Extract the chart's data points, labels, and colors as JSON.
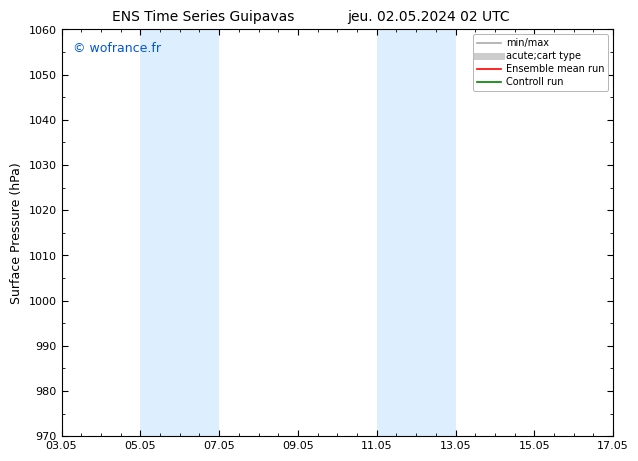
{
  "title_left": "ENS Time Series Guipavas",
  "title_right": "jeu. 02.05.2024 02 UTC",
  "ylabel": "Surface Pressure (hPa)",
  "ylim": [
    970,
    1060
  ],
  "yticks": [
    970,
    980,
    990,
    1000,
    1010,
    1020,
    1030,
    1040,
    1050,
    1060
  ],
  "xlim_start": 0,
  "xlim_end": 14,
  "xtick_labels": [
    "03.05",
    "05.05",
    "07.05",
    "09.05",
    "11.05",
    "13.05",
    "15.05",
    "17.05"
  ],
  "xtick_positions": [
    0,
    2,
    4,
    6,
    8,
    10,
    12,
    14
  ],
  "shaded_regions": [
    {
      "xmin": 2.0,
      "xmax": 4.0
    },
    {
      "xmin": 8.0,
      "xmax": 10.0
    }
  ],
  "shaded_color": "#ddeeff",
  "watermark_text": "© wofrance.fr",
  "watermark_color": "#0055dd",
  "background_color": "#ffffff",
  "axes_bg_color": "#ffffff",
  "legend_entries": [
    {
      "label": "min/max",
      "color": "#aaaaaa",
      "lw": 1.2,
      "style": "line"
    },
    {
      "label": "acute;cart type",
      "color": "#cccccc",
      "lw": 5,
      "style": "line"
    },
    {
      "label": "Ensemble mean run",
      "color": "#ff0000",
      "lw": 1.2,
      "style": "line"
    },
    {
      "label": "Controll run",
      "color": "#008000",
      "lw": 1.2,
      "style": "line"
    }
  ],
  "tick_direction": "in",
  "outer_border_color": "#000000",
  "title_fontsize": 10,
  "tick_fontsize": 8,
  "ylabel_fontsize": 9,
  "watermark_fontsize": 9,
  "legend_fontsize": 7
}
